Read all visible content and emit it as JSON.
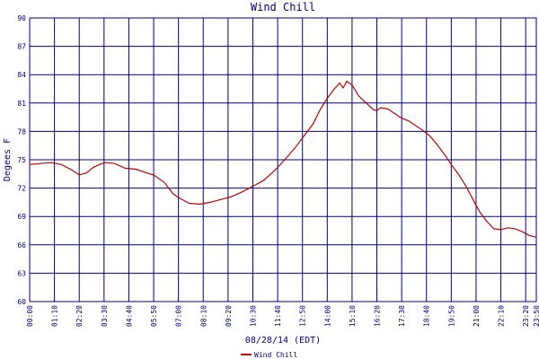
{
  "chart_data": {
    "type": "line",
    "title": "Wind Chill",
    "x_label": "08/28/14 (EDT)",
    "y_label": "Degees F",
    "x": [
      "00:00",
      "00:30",
      "01:00",
      "01:30",
      "02:00",
      "02:20",
      "02:40",
      "03:00",
      "03:30",
      "04:00",
      "04:30",
      "05:00",
      "05:30",
      "05:50",
      "06:20",
      "06:45",
      "07:00",
      "07:30",
      "08:00",
      "08:30",
      "09:00",
      "09:30",
      "10:00",
      "10:30",
      "11:00",
      "11:30",
      "12:00",
      "12:30",
      "13:00",
      "13:20",
      "13:40",
      "14:00",
      "14:20",
      "14:35",
      "14:45",
      "14:55",
      "15:10",
      "15:30",
      "15:50",
      "16:10",
      "16:20",
      "16:30",
      "16:50",
      "17:10",
      "17:30",
      "17:50",
      "18:10",
      "18:30",
      "18:50",
      "19:10",
      "19:30",
      "19:50",
      "20:10",
      "20:30",
      "20:50",
      "21:10",
      "21:30",
      "21:50",
      "22:10",
      "22:30",
      "22:50",
      "23:10",
      "23:30",
      "23:50"
    ],
    "series": [
      {
        "name": "Wind Chill",
        "color": "#c00000",
        "values": [
          74.5,
          74.6,
          74.7,
          74.5,
          73.9,
          73.4,
          73.6,
          74.2,
          74.7,
          74.6,
          74.1,
          74.0,
          73.6,
          73.4,
          72.6,
          71.4,
          71.0,
          70.4,
          70.3,
          70.5,
          70.8,
          71.1,
          71.6,
          72.2,
          72.8,
          73.8,
          75.0,
          76.3,
          77.8,
          78.8,
          80.3,
          81.5,
          82.5,
          83.1,
          82.6,
          83.3,
          82.9,
          81.7,
          81.0,
          80.3,
          80.2,
          80.5,
          80.4,
          79.9,
          79.4,
          79.1,
          78.6,
          78.1,
          77.5,
          76.6,
          75.6,
          74.5,
          73.5,
          72.3,
          70.9,
          69.5,
          68.5,
          67.7,
          67.6,
          67.8,
          67.7,
          67.4,
          67.0,
          66.8
        ]
      }
    ],
    "xlim": [
      "00:00",
      "23:50"
    ],
    "xticks": [
      "00:00",
      "01:10",
      "02:20",
      "03:30",
      "04:40",
      "05:50",
      "07:00",
      "08:10",
      "09:20",
      "10:30",
      "11:40",
      "12:50",
      "14:00",
      "15:10",
      "16:20",
      "17:30",
      "18:40",
      "19:50",
      "21:00",
      "22:10",
      "23:20",
      "23:50"
    ],
    "ylim": [
      60,
      90
    ],
    "yticks": [
      60,
      63,
      66,
      69,
      72,
      75,
      78,
      81,
      84,
      87,
      90
    ],
    "grid": true,
    "legend": "bottom"
  }
}
